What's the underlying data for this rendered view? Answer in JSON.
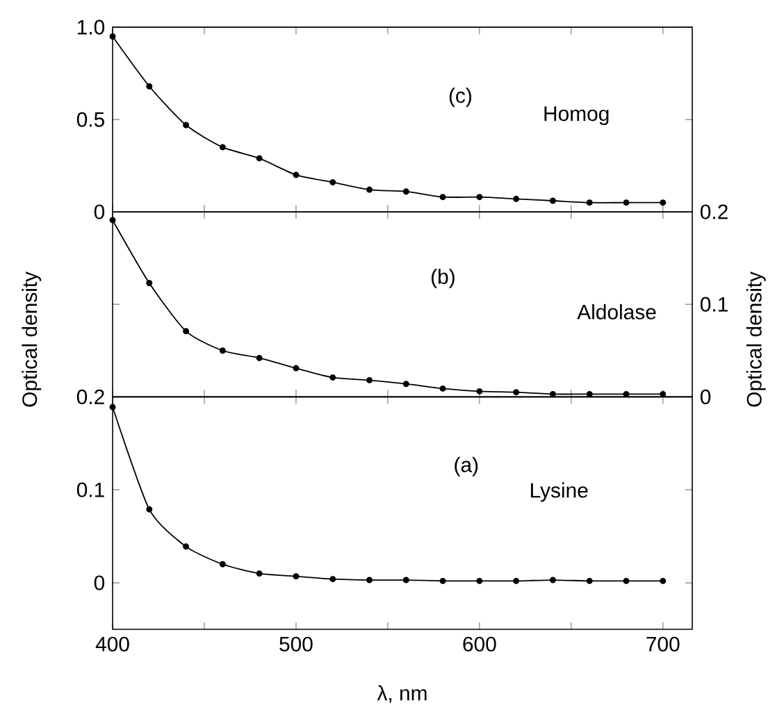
{
  "chart_data": [
    {
      "type": "line",
      "x": [
        400,
        420,
        440,
        460,
        480,
        500,
        520,
        540,
        560,
        580,
        600,
        620,
        640,
        660,
        680,
        700
      ],
      "xlim": [
        400,
        716
      ],
      "xticks": [
        400,
        {
          "value": 450,
          "label": null
        },
        500,
        {
          "value": 550,
          "label": null
        },
        600,
        {
          "value": 650,
          "label": null
        },
        700
      ],
      "ylim": [
        0,
        1
      ],
      "yticks": [
        0,
        0.5,
        {
          "value": 1,
          "label": "1.0"
        }
      ],
      "tick_labels": "y",
      "marker": "circle",
      "line_style": "solid",
      "series": [
        {
          "color": "#000000",
          "values": [
            0.95,
            0.68,
            0.47,
            0.35,
            0.29,
            0.2,
            0.16,
            0.12,
            0.11,
            0.08,
            0.08,
            0.07,
            0.06,
            0.05,
            0.05,
            0.05
          ]
        }
      ],
      "annotations": [
        "(c)",
        "Homog"
      ]
    },
    {
      "type": "line",
      "x": [
        400,
        420,
        440,
        460,
        480,
        500,
        520,
        540,
        560,
        580,
        600,
        620,
        640,
        660,
        680,
        700
      ],
      "xlim": [
        400,
        716
      ],
      "xticks": [
        400,
        {
          "value": 450,
          "label": null
        },
        500,
        {
          "value": 550,
          "label": null
        },
        600,
        {
          "value": 650,
          "label": null
        },
        700
      ],
      "y2lim": [
        0,
        0.2
      ],
      "y2ticks": [
        0,
        0.1,
        0.2
      ],
      "tick_labels": "y",
      "marker": "circle",
      "line_style": "solid",
      "ylabel": "Optical density",
      "y2label": "Optical density",
      "series": [
        {
          "color": "#000000",
          "axis": "y2",
          "values": [
            0.191,
            0.123,
            0.071,
            0.05,
            0.042,
            0.031,
            0.021,
            0.018,
            0.014,
            0.009,
            0.006,
            0.005,
            0.003,
            0.003,
            0.003,
            0.003
          ]
        }
      ],
      "annotations": [
        "(b)",
        "Aldolase"
      ]
    },
    {
      "type": "line",
      "x": [
        400,
        420,
        440,
        460,
        480,
        500,
        520,
        540,
        560,
        580,
        600,
        620,
        640,
        660,
        680,
        700
      ],
      "xlim": [
        400,
        716
      ],
      "xticks": [
        400,
        {
          "value": 450,
          "label": null
        },
        500,
        {
          "value": 550,
          "label": null
        },
        600,
        {
          "value": 650,
          "label": null
        },
        700
      ],
      "ylim": [
        -0.05,
        0.2
      ],
      "yticks": [
        0,
        0.1,
        0.2
      ],
      "marker": "circle",
      "line_style": "solid",
      "xlabel": "λ, nm",
      "series": [
        {
          "color": "#000000",
          "values": [
            0.189,
            0.079,
            0.039,
            0.02,
            0.01,
            0.007,
            0.004,
            0.003,
            0.003,
            0.002,
            0.002,
            0.002,
            0.003,
            0.002,
            0.002,
            0.002
          ]
        }
      ],
      "annotations": [
        "(a)",
        "Lysine"
      ]
    }
  ]
}
